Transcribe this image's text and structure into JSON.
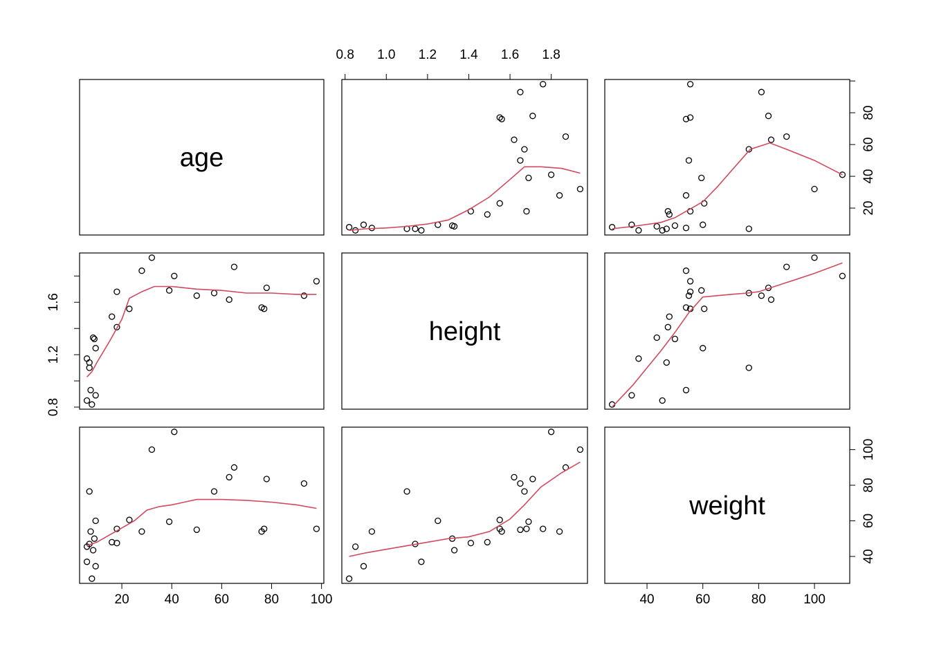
{
  "chart_data": {
    "type": "scatter",
    "subtype": "pairs-matrix",
    "variables": [
      "age",
      "height",
      "weight"
    ],
    "point_color": "#000000",
    "smooth_color": "#d1495b",
    "ranges": {
      "age": [
        6,
        98
      ],
      "height": [
        0.82,
        1.94
      ],
      "weight": [
        27.5,
        110
      ]
    },
    "ticks": {
      "age": [
        20,
        40,
        60,
        80,
        100
      ],
      "height": [
        0.8,
        1.0,
        1.2,
        1.4,
        1.6,
        1.8
      ],
      "weight": [
        40,
        60,
        80,
        100
      ]
    },
    "tick_labels": {
      "age": [
        "20",
        "40",
        "60",
        "80",
        "100"
      ],
      "height_top": [
        "0.8",
        "1.0",
        "1.2",
        "1.4",
        "1.6",
        "1.8"
      ],
      "height_left": [
        "0.8",
        "1.2",
        "1.6"
      ],
      "age_right": [
        "20",
        "40",
        "60",
        "80"
      ],
      "weight_bottom": [
        "40",
        "60",
        "80",
        "100"
      ],
      "weight_right": [
        "40",
        "60",
        "80",
        "100"
      ]
    },
    "observations": [
      {
        "age": 6,
        "height": 1.17,
        "weight": 37
      },
      {
        "age": 6,
        "height": 0.85,
        "weight": 45.5
      },
      {
        "age": 7,
        "height": 1.14,
        "weight": 47
      },
      {
        "age": 7,
        "height": 1.1,
        "weight": 76.5
      },
      {
        "age": 7.5,
        "height": 0.93,
        "weight": 54
      },
      {
        "age": 8,
        "height": 0.82,
        "weight": 27.5
      },
      {
        "age": 8.5,
        "height": 1.33,
        "weight": 43.5
      },
      {
        "age": 9,
        "height": 1.32,
        "weight": 50
      },
      {
        "age": 9.5,
        "height": 0.89,
        "weight": 34.5
      },
      {
        "age": 9.5,
        "height": 1.25,
        "weight": 60
      },
      {
        "age": 16,
        "height": 1.49,
        "weight": 48
      },
      {
        "age": 18,
        "height": 1.68,
        "weight": 55.5
      },
      {
        "age": 18,
        "height": 1.41,
        "weight": 47.5
      },
      {
        "age": 23,
        "height": 1.55,
        "weight": 60.5
      },
      {
        "age": 28,
        "height": 1.84,
        "weight": 54
      },
      {
        "age": 32,
        "height": 1.94,
        "weight": 100
      },
      {
        "age": 39,
        "height": 1.69,
        "weight": 59.5
      },
      {
        "age": 41,
        "height": 1.8,
        "weight": 110
      },
      {
        "age": 50,
        "height": 1.65,
        "weight": 55
      },
      {
        "age": 57,
        "height": 1.67,
        "weight": 76.5
      },
      {
        "age": 63,
        "height": 1.62,
        "weight": 84.5
      },
      {
        "age": 65,
        "height": 1.87,
        "weight": 90
      },
      {
        "age": 76,
        "height": 1.56,
        "weight": 54
      },
      {
        "age": 77,
        "height": 1.55,
        "weight": 55.5
      },
      {
        "age": 78,
        "height": 1.71,
        "weight": 83.5
      },
      {
        "age": 93,
        "height": 1.65,
        "weight": 81
      },
      {
        "age": 98,
        "height": 1.76,
        "weight": 55.5
      }
    ],
    "smooth_lines": {
      "age_vs_height": {
        "x": [
          0.82,
          0.9,
          1.0,
          1.1,
          1.2,
          1.3,
          1.4,
          1.5,
          1.6,
          1.67,
          1.75,
          1.85,
          1.94
        ],
        "y": [
          6,
          7,
          7.5,
          8.5,
          10,
          12.5,
          19,
          27,
          38,
          46,
          46,
          45,
          42
        ]
      },
      "age_vs_weight": {
        "x": [
          27.5,
          35,
          45,
          50,
          55,
          60,
          65,
          70,
          77,
          84,
          90,
          100,
          110
        ],
        "y": [
          7,
          8.5,
          11,
          14,
          19,
          24,
          33,
          43,
          57,
          61,
          57,
          50,
          41
        ]
      },
      "height_vs_age": {
        "x": [
          6,
          8,
          10,
          15,
          20,
          23,
          28,
          33,
          40,
          50,
          60,
          70,
          80,
          90,
          98
        ],
        "y": [
          1.03,
          1.07,
          1.14,
          1.3,
          1.47,
          1.63,
          1.68,
          1.72,
          1.72,
          1.7,
          1.69,
          1.67,
          1.67,
          1.66,
          1.66
        ]
      },
      "height_vs_weight": {
        "x": [
          27.5,
          35,
          40,
          45,
          50,
          55,
          60,
          65,
          70,
          76,
          80,
          90,
          100,
          110
        ],
        "y": [
          0.8,
          0.97,
          1.1,
          1.23,
          1.37,
          1.52,
          1.64,
          1.65,
          1.66,
          1.67,
          1.68,
          1.75,
          1.82,
          1.9
        ]
      },
      "weight_vs_age": {
        "x": [
          6,
          10,
          15,
          20,
          25,
          30,
          35,
          40,
          45,
          50,
          60,
          70,
          80,
          90,
          98
        ],
        "y": [
          46,
          48,
          52,
          56,
          60,
          66,
          68,
          69,
          70.5,
          72,
          72,
          71.5,
          70.5,
          69,
          67
        ]
      },
      "weight_vs_height": {
        "x": [
          0.82,
          0.9,
          1.0,
          1.1,
          1.2,
          1.3,
          1.4,
          1.5,
          1.6,
          1.67,
          1.75,
          1.85,
          1.94
        ],
        "y": [
          40,
          42,
          44,
          46,
          48,
          50,
          51,
          54,
          61,
          69,
          79,
          87,
          93
        ]
      }
    }
  }
}
